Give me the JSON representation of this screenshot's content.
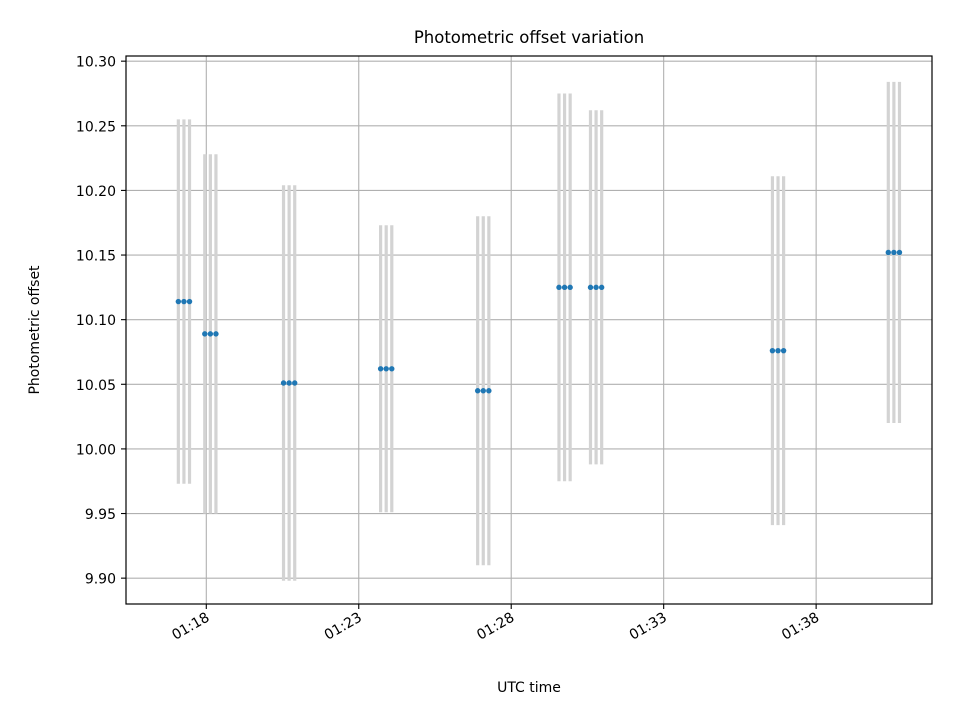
{
  "chart_data": {
    "type": "scatter",
    "title": "Photometric offset variation",
    "xlabel": "UTC time",
    "ylabel": "Photometric offset",
    "grid": true,
    "xlim": [
      "01:15:22",
      "01:41:48"
    ],
    "ylim": [
      9.88,
      10.304
    ],
    "x_ticks": [
      "01:18",
      "01:23",
      "01:28",
      "01:33",
      "01:38"
    ],
    "y_ticks": [
      "9.90",
      "9.95",
      "10.00",
      "10.05",
      "10.10",
      "10.15",
      "10.20",
      "10.25",
      "10.30"
    ],
    "marker_color": "#1f77b4",
    "errorbar_color": "#d3d3d3",
    "groups": [
      {
        "times": [
          "01:17:05",
          "01:17:16",
          "01:17:27"
        ],
        "y": 10.114,
        "yerr": 0.141
      },
      {
        "times": [
          "01:17:57",
          "01:18:08",
          "01:18:19"
        ],
        "y": 10.089,
        "yerr": 0.139
      },
      {
        "times": [
          "01:20:32",
          "01:20:43",
          "01:20:54"
        ],
        "y": 10.051,
        "yerr": 0.153
      },
      {
        "times": [
          "01:23:43",
          "01:23:54",
          "01:24:05"
        ],
        "y": 10.062,
        "yerr": 0.111
      },
      {
        "times": [
          "01:26:54",
          "01:27:05",
          "01:27:16"
        ],
        "y": 10.045,
        "yerr": 0.135
      },
      {
        "times": [
          "01:29:34",
          "01:29:45",
          "01:29:56"
        ],
        "y": 10.125,
        "yerr": 0.15
      },
      {
        "times": [
          "01:30:36",
          "01:30:47",
          "01:30:58"
        ],
        "y": 10.125,
        "yerr": 0.137
      },
      {
        "times": [
          "01:36:34",
          "01:36:45",
          "01:36:56"
        ],
        "y": 10.076,
        "yerr": 0.135
      },
      {
        "times": [
          "01:40:22",
          "01:40:33",
          "01:40:44"
        ],
        "y": 10.152,
        "yerr": 0.132
      }
    ]
  }
}
